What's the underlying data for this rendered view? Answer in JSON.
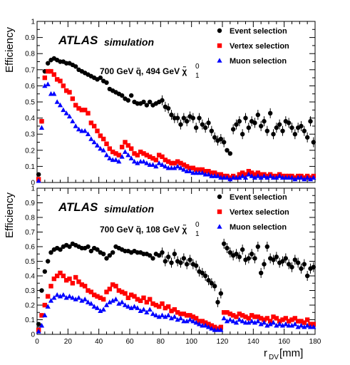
{
  "chart_data": [
    {
      "type": "scatter",
      "panel": "top",
      "ylabel": "Efficiency",
      "xlabel": "",
      "xlim": [
        0,
        180
      ],
      "ylim": [
        0,
        1
      ],
      "x_ticks": [
        "0",
        "20",
        "40",
        "60",
        "80",
        "100",
        "120",
        "140",
        "160",
        "180"
      ],
      "y_ticks": [
        "0",
        "0.1",
        "0.2",
        "0.3",
        "0.4",
        "0.5",
        "0.6",
        "0.7",
        "0.8",
        "0.9",
        "1"
      ],
      "atlas_label": "ATLAS",
      "atlas_sublabel": "simulation",
      "annotation": "700 GeV q̃, 494 GeV χ̃",
      "annotation_sup": "0",
      "annotation_sub": "1",
      "legend_position": "top-right",
      "x": [
        1,
        3,
        5,
        7,
        9,
        11,
        13,
        15,
        17,
        19,
        21,
        23,
        25,
        27,
        29,
        31,
        33,
        35,
        37,
        39,
        41,
        43,
        45,
        47,
        49,
        51,
        53,
        55,
        57,
        59,
        61,
        63,
        65,
        67,
        69,
        71,
        73,
        75,
        77,
        79,
        81,
        83,
        85,
        87,
        89,
        91,
        93,
        95,
        97,
        99,
        101,
        103,
        105,
        107,
        109,
        111,
        113,
        115,
        117,
        119,
        121,
        123,
        125,
        127,
        129,
        131,
        133,
        135,
        137,
        139,
        141,
        143,
        145,
        147,
        149,
        151,
        153,
        155,
        157,
        159,
        161,
        163,
        165,
        167,
        169,
        171,
        173,
        175,
        177,
        179
      ],
      "series": [
        {
          "name": "Event selection",
          "color": "#000000",
          "marker": "circle",
          "values": [
            0.05,
            0.38,
            0.69,
            0.74,
            0.76,
            0.77,
            0.76,
            0.75,
            0.75,
            0.74,
            0.74,
            0.73,
            0.72,
            0.7,
            0.69,
            0.68,
            0.67,
            0.66,
            0.65,
            0.64,
            0.65,
            0.63,
            0.62,
            0.58,
            0.57,
            0.56,
            0.55,
            0.54,
            0.52,
            0.51,
            0.54,
            0.5,
            0.49,
            0.49,
            0.5,
            0.48,
            0.5,
            0.48,
            0.49,
            0.5,
            0.51,
            0.47,
            0.46,
            0.42,
            0.4,
            0.4,
            0.36,
            0.4,
            0.38,
            0.41,
            0.4,
            0.34,
            0.4,
            0.36,
            0.34,
            0.37,
            0.32,
            0.28,
            0.26,
            0.27,
            0.25,
            0.2,
            0.18,
            0.33,
            0.36,
            0.38,
            0.3,
            0.4,
            0.34,
            0.38,
            0.37,
            0.42,
            0.35,
            0.38,
            0.32,
            0.43,
            0.3,
            0.34,
            0.36,
            0.32,
            0.38,
            0.37,
            0.34,
            0.3,
            0.34,
            0.35,
            0.32,
            0.28,
            0.38,
            0.25
          ]
        },
        {
          "name": "Vertex selection",
          "color": "#ff0000",
          "marker": "square",
          "values": [
            0.02,
            0.38,
            0.65,
            0.69,
            0.69,
            0.67,
            0.64,
            0.63,
            0.6,
            0.57,
            0.56,
            0.52,
            0.48,
            0.46,
            0.45,
            0.45,
            0.43,
            0.37,
            0.35,
            0.32,
            0.29,
            0.27,
            0.24,
            0.21,
            0.19,
            0.18,
            0.17,
            0.22,
            0.25,
            0.23,
            0.21,
            0.18,
            0.17,
            0.19,
            0.18,
            0.17,
            0.16,
            0.15,
            0.14,
            0.17,
            0.16,
            0.14,
            0.13,
            0.12,
            0.12,
            0.13,
            0.12,
            0.11,
            0.1,
            0.09,
            0.09,
            0.08,
            0.08,
            0.08,
            0.07,
            0.07,
            0.06,
            0.06,
            0.05,
            0.05,
            0.04,
            0.04,
            0.03,
            0.04,
            0.03,
            0.05,
            0.06,
            0.05,
            0.07,
            0.06,
            0.05,
            0.06,
            0.05,
            0.05,
            0.04,
            0.05,
            0.04,
            0.04,
            0.05,
            0.04,
            0.04,
            0.04,
            0.04,
            0.03,
            0.04,
            0.04,
            0.03,
            0.04,
            0.03,
            0.04
          ]
        },
        {
          "name": "Muon selection",
          "color": "#0000ff",
          "marker": "triangle",
          "values": [
            0.01,
            0.34,
            0.6,
            0.61,
            0.55,
            0.55,
            0.5,
            0.48,
            0.45,
            0.43,
            0.41,
            0.38,
            0.35,
            0.33,
            0.32,
            0.32,
            0.3,
            0.27,
            0.25,
            0.23,
            0.21,
            0.2,
            0.17,
            0.15,
            0.14,
            0.14,
            0.13,
            0.16,
            0.19,
            0.17,
            0.15,
            0.13,
            0.12,
            0.13,
            0.13,
            0.12,
            0.11,
            0.11,
            0.1,
            0.12,
            0.11,
            0.1,
            0.09,
            0.09,
            0.09,
            0.1,
            0.09,
            0.08,
            0.07,
            0.07,
            0.06,
            0.06,
            0.06,
            0.06,
            0.05,
            0.05,
            0.04,
            0.04,
            0.04,
            0.03,
            0.03,
            0.03,
            0.02,
            0.03,
            0.03,
            0.03,
            0.04,
            0.03,
            0.05,
            0.04,
            0.03,
            0.04,
            0.03,
            0.04,
            0.03,
            0.04,
            0.03,
            0.03,
            0.04,
            0.03,
            0.03,
            0.03,
            0.03,
            0.02,
            0.03,
            0.03,
            0.02,
            0.03,
            0.02,
            0.03
          ]
        }
      ]
    },
    {
      "type": "scatter",
      "panel": "bottom",
      "ylabel": "Efficiency",
      "xlabel": "r",
      "xlabel_sub": "DV",
      "xlabel_unit": " [mm]",
      "xlim": [
        0,
        180
      ],
      "ylim": [
        0,
        1
      ],
      "x_ticks": [
        "0",
        "20",
        "40",
        "60",
        "80",
        "100",
        "120",
        "140",
        "160",
        "180"
      ],
      "y_ticks": [
        "0",
        "0.1",
        "0.2",
        "0.3",
        "0.4",
        "0.5",
        "0.6",
        "0.7",
        "0.8",
        "0.9",
        "1"
      ],
      "atlas_label": "ATLAS",
      "atlas_sublabel": "simulation",
      "annotation": "700 GeV q̃, 108 GeV χ̃",
      "annotation_sup": "0",
      "annotation_sub": "1",
      "legend_position": "top-right",
      "x": [
        1,
        3,
        5,
        7,
        9,
        11,
        13,
        15,
        17,
        19,
        21,
        23,
        25,
        27,
        29,
        31,
        33,
        35,
        37,
        39,
        41,
        43,
        45,
        47,
        49,
        51,
        53,
        55,
        57,
        59,
        61,
        63,
        65,
        67,
        69,
        71,
        73,
        75,
        77,
        79,
        81,
        83,
        85,
        87,
        89,
        91,
        93,
        95,
        97,
        99,
        101,
        103,
        105,
        107,
        109,
        111,
        113,
        115,
        117,
        119,
        121,
        123,
        125,
        127,
        129,
        131,
        133,
        135,
        137,
        139,
        141,
        143,
        145,
        147,
        149,
        151,
        153,
        155,
        157,
        159,
        161,
        163,
        165,
        167,
        169,
        171,
        173,
        175,
        177,
        179
      ],
      "series": [
        {
          "name": "Event selection",
          "color": "#000000",
          "marker": "circle",
          "values": [
            0.07,
            0.3,
            0.43,
            0.5,
            0.56,
            0.58,
            0.59,
            0.58,
            0.6,
            0.61,
            0.6,
            0.62,
            0.61,
            0.6,
            0.59,
            0.59,
            0.6,
            0.57,
            0.59,
            0.58,
            0.56,
            0.55,
            0.52,
            0.54,
            0.56,
            0.6,
            0.59,
            0.58,
            0.57,
            0.57,
            0.56,
            0.57,
            0.56,
            0.56,
            0.55,
            0.55,
            0.54,
            0.52,
            0.55,
            0.54,
            0.56,
            0.5,
            0.53,
            0.49,
            0.55,
            0.5,
            0.49,
            0.52,
            0.48,
            0.51,
            0.48,
            0.47,
            0.43,
            0.42,
            0.4,
            0.37,
            0.35,
            0.33,
            0.22,
            0.28,
            0.62,
            0.59,
            0.56,
            0.54,
            0.55,
            0.53,
            0.58,
            0.51,
            0.52,
            0.55,
            0.52,
            0.6,
            0.42,
            0.48,
            0.6,
            0.52,
            0.51,
            0.53,
            0.49,
            0.5,
            0.52,
            0.48,
            0.46,
            0.51,
            0.49,
            0.45,
            0.48,
            0.4,
            0.45,
            0.46
          ]
        },
        {
          "name": "Vertex selection",
          "color": "#ff0000",
          "marker": "square",
          "values": [
            0.03,
            0.13,
            0.2,
            0.26,
            0.33,
            0.38,
            0.4,
            0.42,
            0.4,
            0.37,
            0.38,
            0.35,
            0.39,
            0.36,
            0.34,
            0.33,
            0.3,
            0.29,
            0.27,
            0.26,
            0.25,
            0.24,
            0.29,
            0.31,
            0.34,
            0.33,
            0.3,
            0.29,
            0.28,
            0.25,
            0.27,
            0.26,
            0.24,
            0.23,
            0.25,
            0.22,
            0.24,
            0.21,
            0.2,
            0.19,
            0.21,
            0.18,
            0.19,
            0.16,
            0.17,
            0.15,
            0.14,
            0.14,
            0.13,
            0.13,
            0.12,
            0.11,
            0.09,
            0.09,
            0.08,
            0.07,
            0.06,
            0.05,
            0.04,
            0.05,
            0.15,
            0.15,
            0.14,
            0.13,
            0.12,
            0.14,
            0.13,
            0.12,
            0.11,
            0.13,
            0.12,
            0.12,
            0.11,
            0.1,
            0.11,
            0.09,
            0.12,
            0.11,
            0.09,
            0.1,
            0.11,
            0.09,
            0.1,
            0.11,
            0.09,
            0.09,
            0.08,
            0.1,
            0.07,
            0.07
          ]
        },
        {
          "name": "Muon selection",
          "color": "#0000ff",
          "marker": "triangle",
          "values": [
            0.02,
            0.06,
            0.13,
            0.19,
            0.23,
            0.25,
            0.27,
            0.26,
            0.27,
            0.25,
            0.26,
            0.25,
            0.24,
            0.25,
            0.23,
            0.24,
            0.22,
            0.21,
            0.19,
            0.18,
            0.16,
            0.17,
            0.2,
            0.22,
            0.23,
            0.24,
            0.21,
            0.22,
            0.2,
            0.19,
            0.18,
            0.19,
            0.18,
            0.16,
            0.17,
            0.15,
            0.17,
            0.14,
            0.13,
            0.12,
            0.13,
            0.12,
            0.13,
            0.11,
            0.12,
            0.1,
            0.11,
            0.09,
            0.09,
            0.1,
            0.09,
            0.08,
            0.07,
            0.06,
            0.06,
            0.05,
            0.04,
            0.03,
            0.03,
            0.03,
            0.11,
            0.09,
            0.1,
            0.09,
            0.08,
            0.1,
            0.09,
            0.08,
            0.08,
            0.09,
            0.08,
            0.09,
            0.07,
            0.08,
            0.06,
            0.07,
            0.08,
            0.06,
            0.07,
            0.06,
            0.07,
            0.06,
            0.06,
            0.07,
            0.05,
            0.06,
            0.05,
            0.06,
            0.05,
            0.05
          ]
        }
      ]
    }
  ]
}
